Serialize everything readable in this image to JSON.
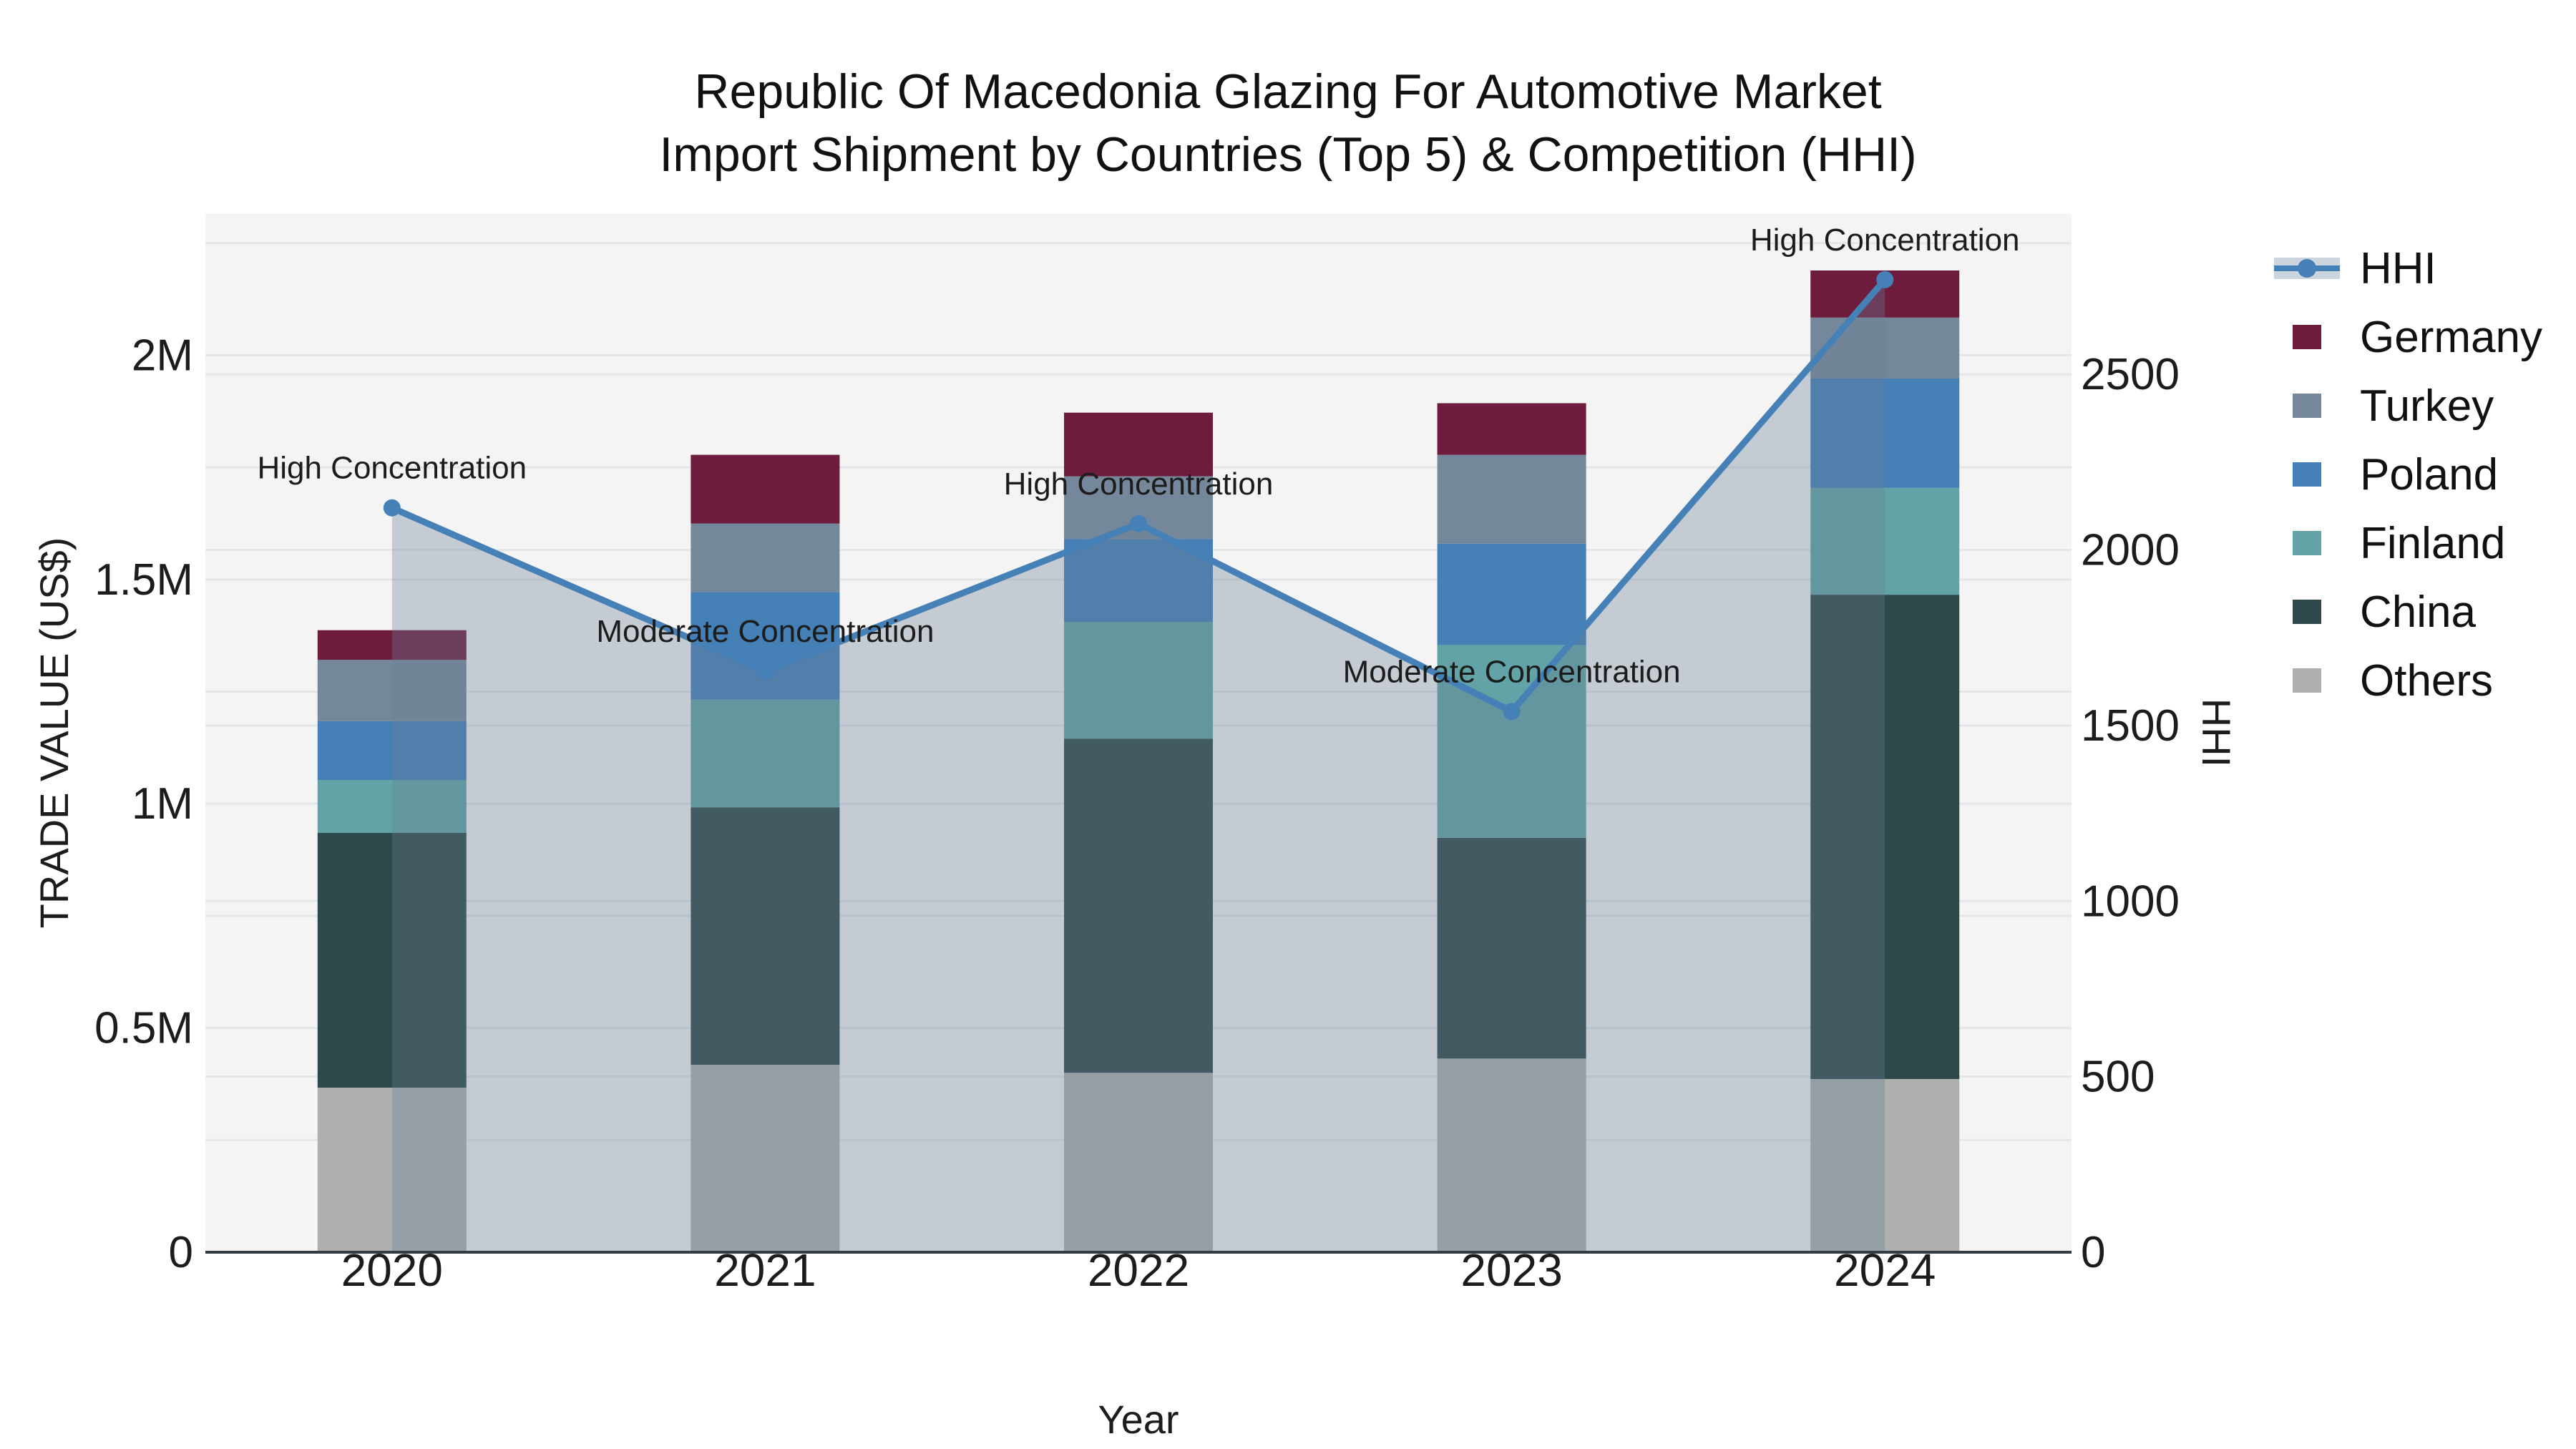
{
  "title": {
    "line1": "Republic Of Macedonia Glazing For Automotive Market",
    "line2": "Import Shipment by Countries (Top 5) & Competition (HHI)"
  },
  "legend": {
    "items": [
      {
        "label": "HHI",
        "type": "line",
        "color": "#4580b6",
        "band": "#ccd5de"
      },
      {
        "label": "Germany",
        "type": "swatch",
        "color": "#6d1c3e"
      },
      {
        "label": "Turkey",
        "type": "swatch",
        "color": "#75879a"
      },
      {
        "label": "Poland",
        "type": "swatch",
        "color": "#447fb5"
      },
      {
        "label": "Finland",
        "type": "swatch",
        "color": "#61a3a6"
      },
      {
        "label": "China",
        "type": "swatch",
        "color": "#2d4949"
      },
      {
        "label": "Others",
        "type": "swatch",
        "color": "#aeb0b0"
      }
    ]
  },
  "chart_data": {
    "type": "combo: stacked bar (trade value, left axis) + line with area fill (HHI, right axis)",
    "categories": [
      "2020",
      "2021",
      "2022",
      "2023",
      "2024"
    ],
    "bar_value_unit": "US$",
    "series": [
      {
        "name": "Germany",
        "color": "#6d1c3e",
        "values": [
          66000,
          153000,
          142000,
          115000,
          105000
        ]
      },
      {
        "name": "Turkey",
        "color": "#75879a",
        "values": [
          137000,
          153000,
          140000,
          198000,
          136000
        ]
      },
      {
        "name": "Poland",
        "color": "#447fb5",
        "values": [
          131000,
          240000,
          185000,
          226000,
          244000
        ]
      },
      {
        "name": "Finland",
        "color": "#61a3a6",
        "values": [
          118000,
          240000,
          260000,
          430000,
          238000
        ]
      },
      {
        "name": "China",
        "color": "#2d4949",
        "values": [
          568000,
          574000,
          745000,
          492000,
          1080000
        ]
      },
      {
        "name": "Others",
        "color": "#aeb0b0",
        "values": [
          367000,
          418000,
          400000,
          432000,
          386000
        ]
      }
    ],
    "stack_order_bottom_to_top": [
      "Others",
      "China",
      "Finland",
      "Poland",
      "Turkey",
      "Germany"
    ],
    "bar_totals": [
      1387000,
      1778000,
      1872000,
      1893000,
      2189000
    ],
    "line_series": {
      "name": "HHI",
      "axis": "right",
      "color": "#4580b6",
      "fill": "rgba(105,125,150,0.35)",
      "values": [
        2120,
        1655,
        2075,
        1540,
        2770
      ]
    },
    "annotations": [
      {
        "category": "2020",
        "text": "High Concentration"
      },
      {
        "category": "2021",
        "text": "Moderate Concentration"
      },
      {
        "category": "2022",
        "text": "High Concentration"
      },
      {
        "category": "2023",
        "text": "Moderate Concentration"
      },
      {
        "category": "2024",
        "text": "High Concentration"
      }
    ],
    "axes": {
      "x": {
        "title": "Year",
        "ticks": [
          "2020",
          "2021",
          "2022",
          "2023",
          "2024"
        ]
      },
      "y_left": {
        "title": "TRADE VALUE (US$)",
        "range": [
          0,
          2315000
        ],
        "grid_step": 250000,
        "ticks": [
          {
            "label": "0",
            "value": 0
          },
          {
            "label": "0.5M",
            "value": 500000
          },
          {
            "label": "1M",
            "value": 1000000
          },
          {
            "label": "1.5M",
            "value": 1500000
          },
          {
            "label": "2M",
            "value": 2000000
          }
        ]
      },
      "y_right": {
        "title": "HHI",
        "range": [
          0,
          2957
        ],
        "ticks": [
          {
            "label": "0",
            "value": 0
          },
          {
            "label": "500",
            "value": 500
          },
          {
            "label": "1000",
            "value": 1000
          },
          {
            "label": "1500",
            "value": 1500
          },
          {
            "label": "2000",
            "value": 2000
          },
          {
            "label": "2500",
            "value": 2500
          }
        ]
      }
    },
    "style": {
      "plot_background": "#f4f4f5",
      "gridline": "#e4e6e8",
      "axis_line": "#333b44",
      "text": "#1c1c1c"
    }
  }
}
